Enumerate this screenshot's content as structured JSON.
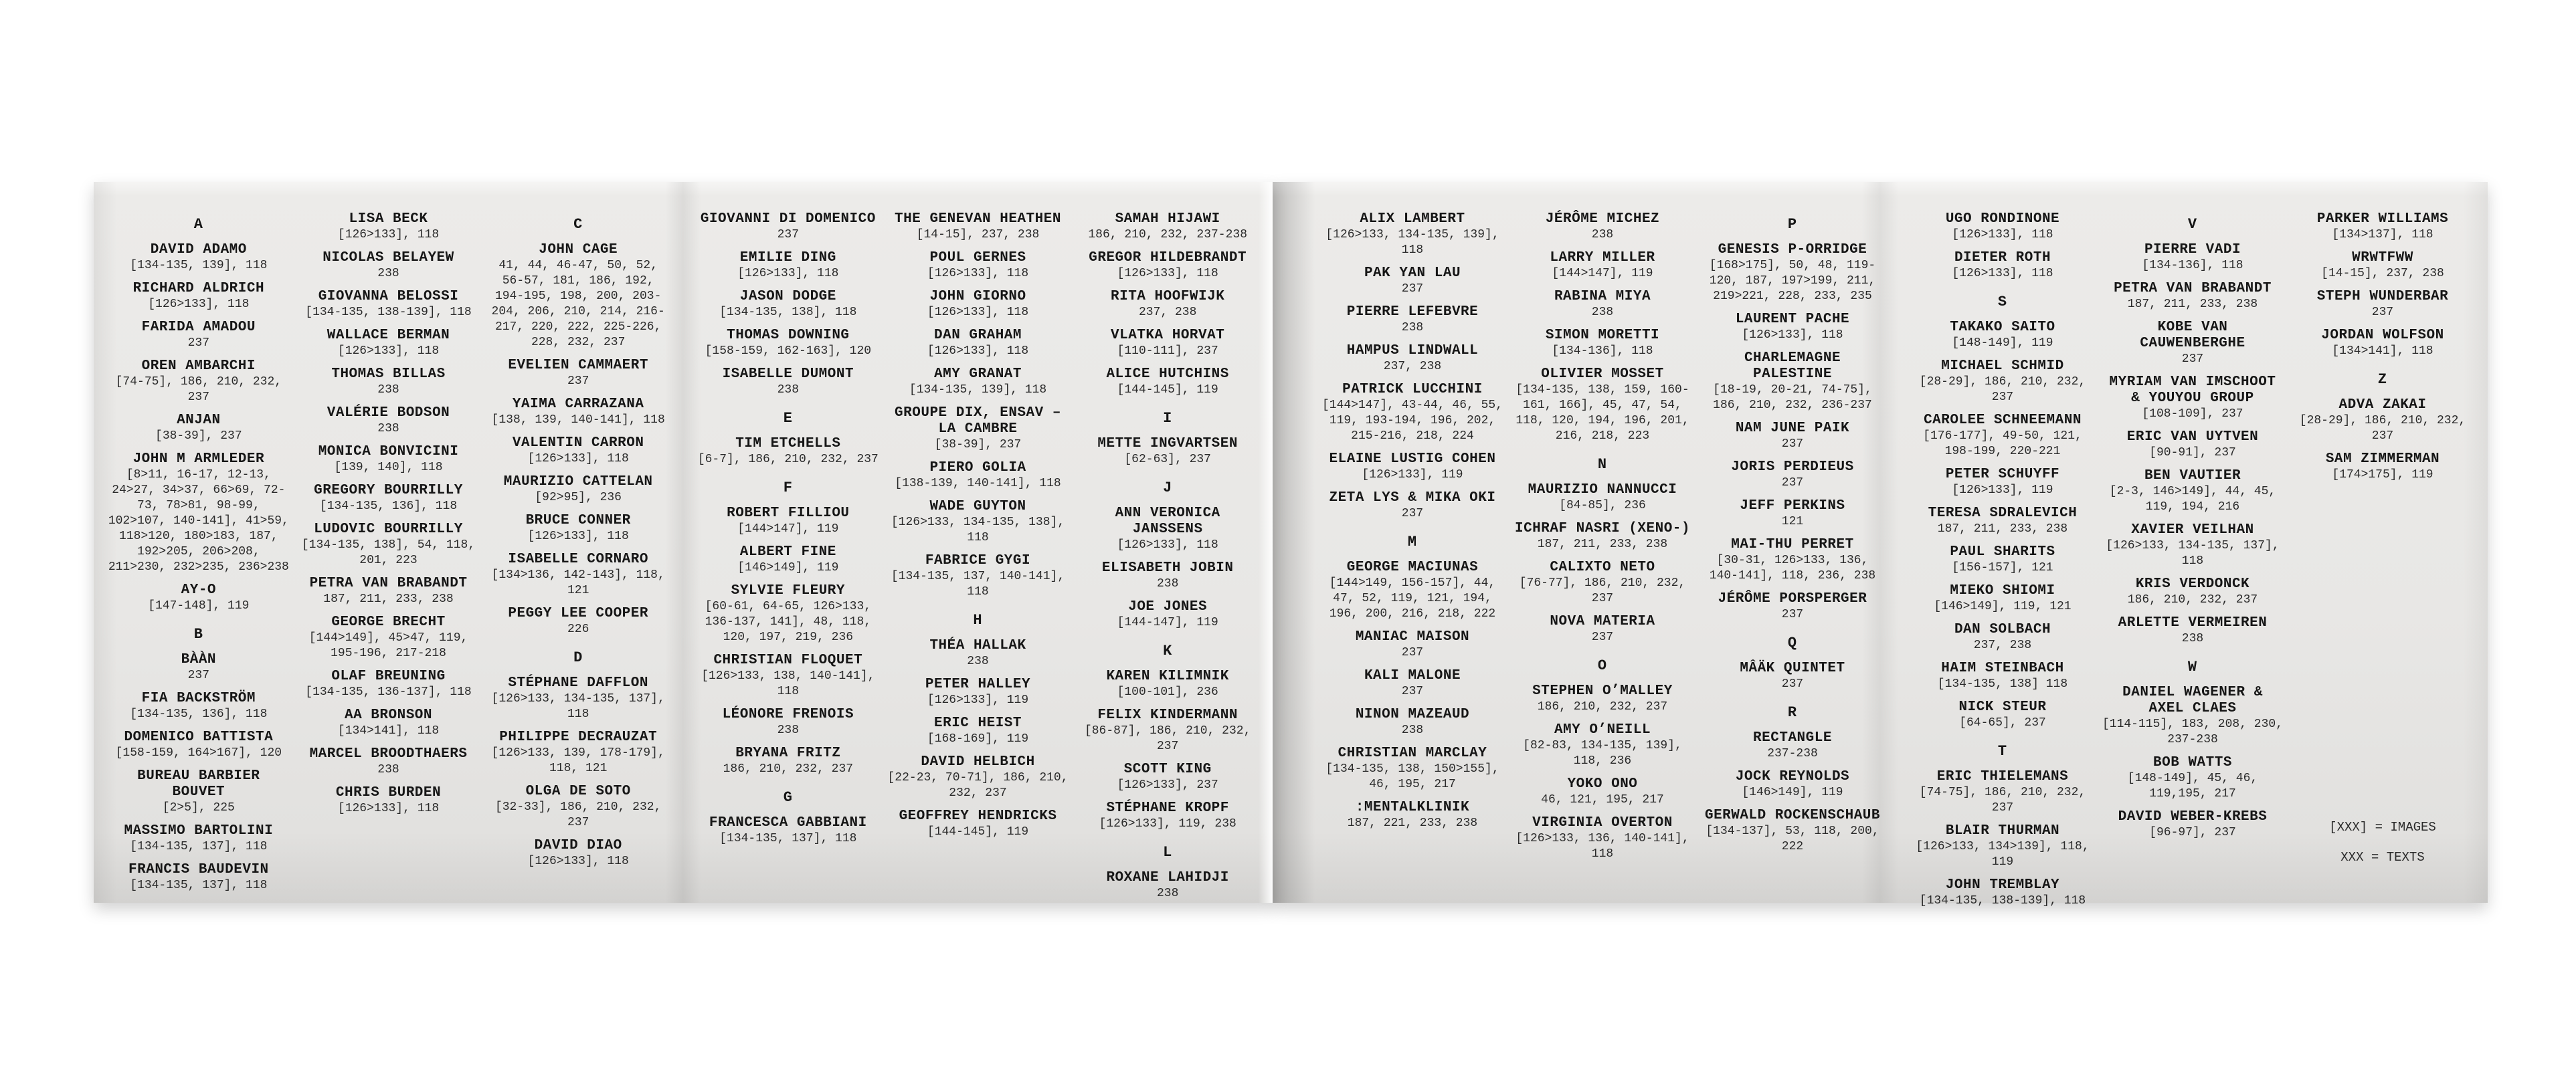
{
  "meta": {
    "background_color": "#ffffff",
    "page_color": "#e8e7e5",
    "text_color": "#161616",
    "description": "Accordion-folded printed artist index spread, four pages"
  },
  "legend": {
    "images_line": "[XXX] = IMAGES",
    "texts_line": "XXX = TEXTS"
  },
  "panels": [
    {
      "columns": [
        [
          {
            "L": "A"
          },
          {
            "n": "DAVID ADAMO",
            "r": "[134-135, 139], 118"
          },
          {
            "n": "RICHARD ALDRICH",
            "r": "[126>133], 118"
          },
          {
            "n": "FARIDA AMADOU",
            "r": "237"
          },
          {
            "n": "OREN AMBARCHI",
            "r": "[74-75], 186, 210, 232, 237"
          },
          {
            "n": "ANJAN",
            "r": "[38-39], 237"
          },
          {
            "n": "JOHN M ARMLEDER",
            "r": "[8>11, 16-17, 12-13, 24>27, 34>37, 66>69, 72-73, 78>81, 98-99, 102>107, 140-141], 41>59, 118>120, 180>183, 187, 192>205, 206>208, 211>230, 232>235, 236>238"
          },
          {
            "n": "AY-O",
            "r": "[147-148], 119"
          },
          {
            "L": "B"
          },
          {
            "n": "BÀÀN",
            "r": "237"
          },
          {
            "n": "FIA BACKSTRÖM",
            "r": "[134-135, 136], 118"
          },
          {
            "n": "DOMENICO BATTISTA",
            "r": "[158-159, 164>167], 120"
          },
          {
            "n": "BUREAU BARBIER BOUVET",
            "r": "[2>5], 225"
          },
          {
            "n": "MASSIMO BARTOLINI",
            "r": "[134-135, 137], 118"
          },
          {
            "n": "FRANCIS BAUDEVIN",
            "r": "[134-135, 137], 118"
          }
        ],
        [
          {
            "n": "LISA BECK",
            "r": "[126>133], 118"
          },
          {
            "n": "NICOLAS BELAYEW",
            "r": "238"
          },
          {
            "n": "GIOVANNA BELOSSI",
            "r": "[134-135, 138-139], 118"
          },
          {
            "n": "WALLACE BERMAN",
            "r": "[126>133], 118"
          },
          {
            "n": "THOMAS BILLAS",
            "r": "238"
          },
          {
            "n": "VALÉRIE BODSON",
            "r": "238"
          },
          {
            "n": "MONICA BONVICINI",
            "r": "[139, 140], 118"
          },
          {
            "n": "GREGORY BOURRILLY",
            "r": "[134-135, 136], 118"
          },
          {
            "n": "LUDOVIC BOURRILLY",
            "r": "[134-135, 138], 54, 118, 201, 223"
          },
          {
            "n": "PETRA VAN BRABANDT",
            "r": "187, 211, 233, 238"
          },
          {
            "n": "GEORGE BRECHT",
            "r": "[144>149], 45>47, 119, 195-196, 217-218"
          },
          {
            "n": "OLAF BREUNING",
            "r": "[134-135, 136-137], 118"
          },
          {
            "n": "AA BRONSON",
            "r": "[134>141], 118"
          },
          {
            "n": "MARCEL BROODTHAERS",
            "r": "238"
          },
          {
            "n": "CHRIS BURDEN",
            "r": "[126>133], 118"
          }
        ],
        [
          {
            "L": "C"
          },
          {
            "n": "JOHN CAGE",
            "r": "41, 44, 46-47, 50, 52, 56-57, 181, 186, 192, 194-195, 198, 200, 203-204, 206, 210, 214, 216-217, 220, 222, 225-226, 228, 232, 237"
          },
          {
            "n": "EVELIEN CAMMAERT",
            "r": "237"
          },
          {
            "n": "YAIMA CARRAZANA",
            "r": "[138, 139, 140-141], 118"
          },
          {
            "n": "VALENTIN CARRON",
            "r": "[126>133], 118"
          },
          {
            "n": "MAURIZIO CATTELAN",
            "r": "[92>95], 236"
          },
          {
            "n": "BRUCE CONNER",
            "r": "[126>133], 118"
          },
          {
            "n": "ISABELLE CORNARO",
            "r": "[134>136, 142-143], 118, 121"
          },
          {
            "n": "PEGGY LEE COOPER",
            "r": "226"
          },
          {
            "L": "D"
          },
          {
            "n": "STÉPHANE DAFFLON",
            "r": "[126>133, 134-135, 137], 118"
          },
          {
            "n": "PHILIPPE DECRAUZAT",
            "r": "[126>133, 139, 178-179], 118, 121"
          },
          {
            "n": "OLGA DE SOTO",
            "r": "[32-33], 186, 210, 232, 237"
          },
          {
            "n": "DAVID DIAO",
            "r": "[126>133], 118"
          }
        ]
      ]
    },
    {
      "columns": [
        [
          {
            "n": "GIOVANNI DI DOMENICO",
            "r": "237"
          },
          {
            "n": "EMILIE DING",
            "r": "[126>133], 118"
          },
          {
            "n": "JASON DODGE",
            "r": "[134-135, 138], 118"
          },
          {
            "n": "THOMAS DOWNING",
            "r": "[158-159, 162-163], 120"
          },
          {
            "n": "ISABELLE DUMONT",
            "r": "238"
          },
          {
            "L": "E"
          },
          {
            "n": "TIM ETCHELLS",
            "r": "[6-7], 186, 210, 232, 237"
          },
          {
            "L": "F"
          },
          {
            "n": "ROBERT FILLIOU",
            "r": "[144>147], 119"
          },
          {
            "n": "ALBERT FINE",
            "r": "[146>149], 119"
          },
          {
            "n": "SYLVIE FLEURY",
            "r": "[60-61, 64-65, 126>133, 136-137, 141], 48, 118, 120, 197, 219, 236"
          },
          {
            "n": "CHRISTIAN FLOQUET",
            "r": "[126>133, 138, 140-141], 118"
          },
          {
            "n": "LÉONORE FRENOIS",
            "r": "238"
          },
          {
            "n": "BRYANA FRITZ",
            "r": "186, 210, 232, 237"
          },
          {
            "L": "G"
          },
          {
            "n": "FRANCESCA GABBIANI",
            "r": "[134-135, 137], 118"
          }
        ],
        [
          {
            "n": "THE GENEVAN HEATHEN",
            "r": "[14-15], 237, 238"
          },
          {
            "n": "POUL GERNES",
            "r": "[126>133], 118"
          },
          {
            "n": "JOHN GIORNO",
            "r": "[126>133], 118"
          },
          {
            "n": "DAN GRAHAM",
            "r": "[126>133], 118"
          },
          {
            "n": "AMY GRANAT",
            "r": "[134-135, 139], 118"
          },
          {
            "n": "GROUPE DIX, ENSAV – LA CAMBRE",
            "r": "[38-39], 237"
          },
          {
            "n": "PIERO GOLIA",
            "r": "[138-139, 140-141], 118"
          },
          {
            "n": "WADE GUYTON",
            "r": "[126>133, 134-135, 138], 118"
          },
          {
            "n": "FABRICE GYGI",
            "r": "[134-135, 137, 140-141], 118"
          },
          {
            "L": "H"
          },
          {
            "n": "THÉA HALLAK",
            "r": "238"
          },
          {
            "n": "PETER HALLEY",
            "r": "[126>133], 119"
          },
          {
            "n": "ERIC HEIST",
            "r": "[168-169], 119"
          },
          {
            "n": "DAVID HELBICH",
            "r": "[22-23, 70-71], 186, 210, 232, 237"
          },
          {
            "n": "GEOFFREY HENDRICKS",
            "r": "[144-145], 119"
          }
        ],
        [
          {
            "n": "SAMAH HIJAWI",
            "r": "186, 210, 232, 237-238"
          },
          {
            "n": "GREGOR HILDEBRANDT",
            "r": "[126>133], 118"
          },
          {
            "n": "RITA HOOFWIJK",
            "r": "237, 238"
          },
          {
            "n": "VLATKA HORVAT",
            "r": "[110-111], 237"
          },
          {
            "n": "ALICE HUTCHINS",
            "r": "[144-145], 119"
          },
          {
            "L": "I"
          },
          {
            "n": "METTE INGVARTSEN",
            "r": "[62-63], 237"
          },
          {
            "L": "J"
          },
          {
            "n": "ANN VERONICA JANSSENS",
            "r": "[126>133], 118"
          },
          {
            "n": "ELISABETH JOBIN",
            "r": "238"
          },
          {
            "n": "JOE JONES",
            "r": "[144-147], 119"
          },
          {
            "L": "K"
          },
          {
            "n": "KAREN KILIMNIK",
            "r": "[100-101], 236"
          },
          {
            "n": "FELIX KINDERMANN",
            "r": "[86-87], 186, 210, 232, 237"
          },
          {
            "n": "SCOTT KING",
            "r": "[126>133], 237"
          },
          {
            "n": "STÉPHANE KROPF",
            "r": "[126>133], 119, 238"
          },
          {
            "L": "L"
          },
          {
            "n": "ROXANE LAHIDJI",
            "r": "238"
          }
        ]
      ]
    },
    {
      "columns": [
        [
          {
            "n": "ALIX LAMBERT",
            "r": "[126>133, 134-135, 139], 118"
          },
          {
            "n": "PAK YAN LAU",
            "r": "237"
          },
          {
            "n": "PIERRE LEFEBVRE",
            "r": "238"
          },
          {
            "n": "HAMPUS LINDWALL",
            "r": "237, 238"
          },
          {
            "n": "PATRICK LUCCHINI",
            "r": "[144>147], 43-44, 46, 55, 119, 193-194, 196, 202, 215-216, 218, 224"
          },
          {
            "n": "ELAINE LUSTIG COHEN",
            "r": "[126>133], 119"
          },
          {
            "n": "ZETA LYS & MIKA OKI",
            "r": "237"
          },
          {
            "L": "M"
          },
          {
            "n": "GEORGE MACIUNAS",
            "r": "[144>149, 156-157], 44, 47, 52, 119, 121, 194, 196, 200, 216, 218, 222"
          },
          {
            "n": "MANIAC MAISON",
            "r": "237"
          },
          {
            "n": "KALI MALONE",
            "r": "237"
          },
          {
            "n": "NINON MAZEAUD",
            "r": "238"
          },
          {
            "n": "CHRISTIAN MARCLAY",
            "r": "[134-135, 138, 150>155], 46, 195, 217"
          },
          {
            "n": ":MENTALKLINIK",
            "r": "187, 221, 233, 238"
          }
        ],
        [
          {
            "n": "JÉRÔME MICHEZ",
            "r": "238"
          },
          {
            "n": "LARRY MILLER",
            "r": "[144>147], 119"
          },
          {
            "n": "RABINA MIYA",
            "r": "238"
          },
          {
            "n": "SIMON MORETTI",
            "r": "[134-136], 118"
          },
          {
            "n": "OLIVIER MOSSET",
            "r": "[134-135, 138, 159, 160-161, 166], 45, 47, 54, 118, 120, 194, 196, 201, 216, 218, 223"
          },
          {
            "L": "N"
          },
          {
            "n": "MAURIZIO NANNUCCI",
            "r": "[84-85], 236"
          },
          {
            "n": "ICHRAF NASRI (XENO-)",
            "r": "187, 211, 233, 238"
          },
          {
            "n": "CALIXTO NETO",
            "r": "[76-77], 186, 210, 232, 237"
          },
          {
            "n": "NOVA MATERIA",
            "r": "237"
          },
          {
            "L": "O"
          },
          {
            "n": "STEPHEN O’MALLEY",
            "r": "186, 210, 232, 237"
          },
          {
            "n": "AMY O’NEILL",
            "r": "[82-83, 134-135, 139], 118, 236"
          },
          {
            "n": "YOKO ONO",
            "r": "46, 121, 195, 217"
          },
          {
            "n": "VIRGINIA OVERTON",
            "r": "[126>133, 136, 140-141], 118"
          }
        ],
        [
          {
            "L": "P"
          },
          {
            "n": "GENESIS P-ORRIDGE",
            "r": "[168>175], 50, 48, 119-120, 187, 197>199, 211, 219>221, 228, 233, 235"
          },
          {
            "n": "LAURENT PACHE",
            "r": "[126>133], 118"
          },
          {
            "n": "CHARLEMAGNE PALESTINE",
            "r": "[18-19, 20-21, 74-75], 186, 210, 232, 236-237"
          },
          {
            "n": "NAM JUNE PAIK",
            "r": "237"
          },
          {
            "n": "JORIS PERDIEUS",
            "r": "237"
          },
          {
            "n": "JEFF PERKINS",
            "r": "121"
          },
          {
            "n": "MAI-THU PERRET",
            "r": "[30-31, 126>133, 136, 140-141], 118, 236, 238"
          },
          {
            "n": "JÉRÔME PORSPERGER",
            "r": "237"
          },
          {
            "L": "Q"
          },
          {
            "n": "MÂÄK QUINTET",
            "r": "237"
          },
          {
            "L": "R"
          },
          {
            "n": "RECTANGLE",
            "r": "237-238"
          },
          {
            "n": "JOCK REYNOLDS",
            "r": "[146>149], 119"
          },
          {
            "n": "GERWALD ROCKENSCHAUB",
            "r": "[134-137], 53, 118, 200, 222"
          }
        ]
      ]
    },
    {
      "columns": [
        [
          {
            "n": "UGO RONDINONE",
            "r": "[126>133], 118"
          },
          {
            "n": "DIETER ROTH",
            "r": "[126>133], 118"
          },
          {
            "L": "S"
          },
          {
            "n": "TAKAKO SAITO",
            "r": "[148-149], 119"
          },
          {
            "n": "MICHAEL SCHMID",
            "r": "[28-29], 186, 210, 232, 237"
          },
          {
            "n": "CAROLEE SCHNEEMANN",
            "r": "[176-177], 49-50, 121, 198-199, 220-221"
          },
          {
            "n": "PETER SCHUYFF",
            "r": "[126>133], 119"
          },
          {
            "n": "TERESA SDRALEVICH",
            "r": "187, 211, 233, 238"
          },
          {
            "n": "PAUL SHARITS",
            "r": "[156-157], 121"
          },
          {
            "n": "MIEKO SHIOMI",
            "r": "[146>149], 119, 121"
          },
          {
            "n": "DAN SOLBACH",
            "r": "237, 238"
          },
          {
            "n": "HAIM STEINBACH",
            "r": "[134-135, 138] 118"
          },
          {
            "n": "NICK STEUR",
            "r": "[64-65], 237"
          },
          {
            "L": "T"
          },
          {
            "n": "ERIC THIELEMANS",
            "r": "[74-75], 186, 210, 232, 237"
          },
          {
            "n": "BLAIR THURMAN",
            "r": "[126>133, 134>139], 118, 119"
          },
          {
            "n": "JOHN TREMBLAY",
            "r": "[134-135, 138-139], 118"
          }
        ],
        [
          {
            "L": "V"
          },
          {
            "n": "PIERRE VADI",
            "r": "[134-136], 118"
          },
          {
            "n": "PETRA VAN BRABANDT",
            "r": "187, 211, 233, 238"
          },
          {
            "n": "KOBE VAN CAUWENBERGHE",
            "r": "237"
          },
          {
            "n": "MYRIAM VAN IMSCHOOT & YOUYOU GROUP",
            "r": "[108-109], 237"
          },
          {
            "n": "ERIC VAN UYTVEN",
            "r": "[90-91], 237"
          },
          {
            "n": "BEN VAUTIER",
            "r": "[2-3, 146>149], 44, 45, 119, 194, 216"
          },
          {
            "n": "XAVIER VEILHAN",
            "r": "[126>133, 134-135, 137], 118"
          },
          {
            "n": "KRIS VERDONCK",
            "r": "186, 210, 232, 237"
          },
          {
            "n": "ARLETTE VERMEIREN",
            "r": "238"
          },
          {
            "L": "W"
          },
          {
            "n": "DANIEL WAGENER & AXEL CLAES",
            "r": "[114-115], 183, 208, 230, 237-238"
          },
          {
            "n": "BOB WATTS",
            "r": "[148-149], 45, 46, 119,195, 217"
          },
          {
            "n": "DAVID WEBER-KREBS",
            "r": "[96-97], 237"
          }
        ],
        [
          {
            "n": "PARKER WILLIAMS",
            "r": "[134>137], 118"
          },
          {
            "n": "WRWTFWW",
            "r": "[14-15], 237, 238"
          },
          {
            "n": "STEPH WUNDERBAR",
            "r": "237"
          },
          {
            "n": "JORDAN WOLFSON",
            "r": "[134>141], 118"
          },
          {
            "L": "Z"
          },
          {
            "n": "ADVA ZAKAI",
            "r": "[28-29], 186, 210, 232, 237"
          },
          {
            "n": "SAM ZIMMERMAN",
            "r": "[174>175], 119"
          }
        ]
      ]
    }
  ]
}
